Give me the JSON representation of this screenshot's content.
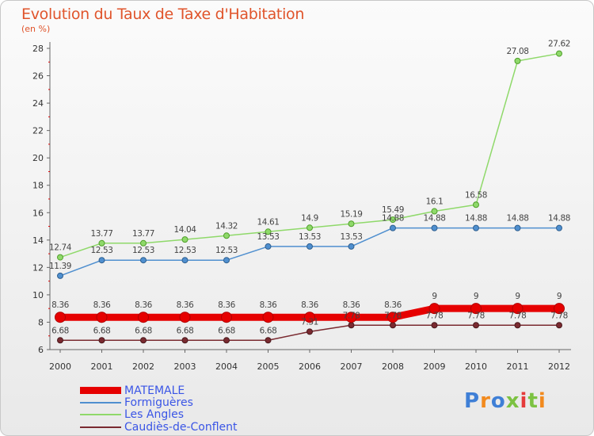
{
  "title": "Evolution du Taux de Taxe d'Habitation",
  "subtitle": "(en %)",
  "logo": "Proxiti",
  "chart_data": {
    "type": "line",
    "x": [
      "2000",
      "2001",
      "2002",
      "2003",
      "2004",
      "2005",
      "2006",
      "2007",
      "2008",
      "2009",
      "2010",
      "2011",
      "2012"
    ],
    "ylim": [
      6,
      28
    ],
    "yticks": [
      6,
      8,
      10,
      12,
      14,
      16,
      18,
      20,
      22,
      24,
      26,
      28
    ],
    "grid": false,
    "legend": "bottom-left",
    "series": [
      {
        "name": "MATEMALE",
        "color": "#e60000",
        "values": [
          8.36,
          8.36,
          8.36,
          8.36,
          8.36,
          8.36,
          8.36,
          8.36,
          8.36,
          9,
          9,
          9,
          9
        ],
        "labels": [
          "8.36",
          "8.36",
          "8.36",
          "8.36",
          "8.36",
          "8.36",
          "8.36",
          "8.36",
          "8.36",
          "9",
          "9",
          "9",
          "9"
        ]
      },
      {
        "name": "Formiguères",
        "color": "#4f8fcf",
        "values": [
          11.39,
          12.53,
          12.53,
          12.53,
          12.53,
          13.53,
          13.53,
          13.53,
          14.88,
          14.88,
          14.88,
          14.88,
          14.88
        ],
        "labels": [
          "11.39",
          "12.53",
          "12.53",
          "12.53",
          "12.53",
          "13.53",
          "13.53",
          "13.53",
          "14.88",
          "14.88",
          "14.88",
          "14.88",
          "14.88"
        ]
      },
      {
        "name": "Les Angles",
        "color": "#8fd96a",
        "values": [
          12.74,
          13.77,
          13.77,
          14.04,
          14.32,
          14.61,
          14.9,
          15.19,
          15.49,
          16.1,
          16.58,
          27.08,
          27.62
        ],
        "labels": [
          "12.74",
          "13.77",
          "13.77",
          "14.04",
          "14.32",
          "14.61",
          "14.9",
          "15.19",
          "15.49",
          "16.1",
          "16.58",
          "27.08",
          "27.62"
        ]
      },
      {
        "name": "Caudiès-de-Conflent",
        "color": "#7a2a30",
        "values": [
          6.68,
          6.68,
          6.68,
          6.68,
          6.68,
          6.68,
          7.31,
          7.78,
          7.78,
          7.78,
          7.78,
          7.78,
          7.78
        ],
        "labels": [
          "6.68",
          "6.68",
          "6.68",
          "6.68",
          "6.68",
          "6.68",
          "7.31",
          "7.78",
          "7.78",
          "7.78",
          "7.78",
          "7.78",
          "7.78"
        ]
      }
    ]
  }
}
